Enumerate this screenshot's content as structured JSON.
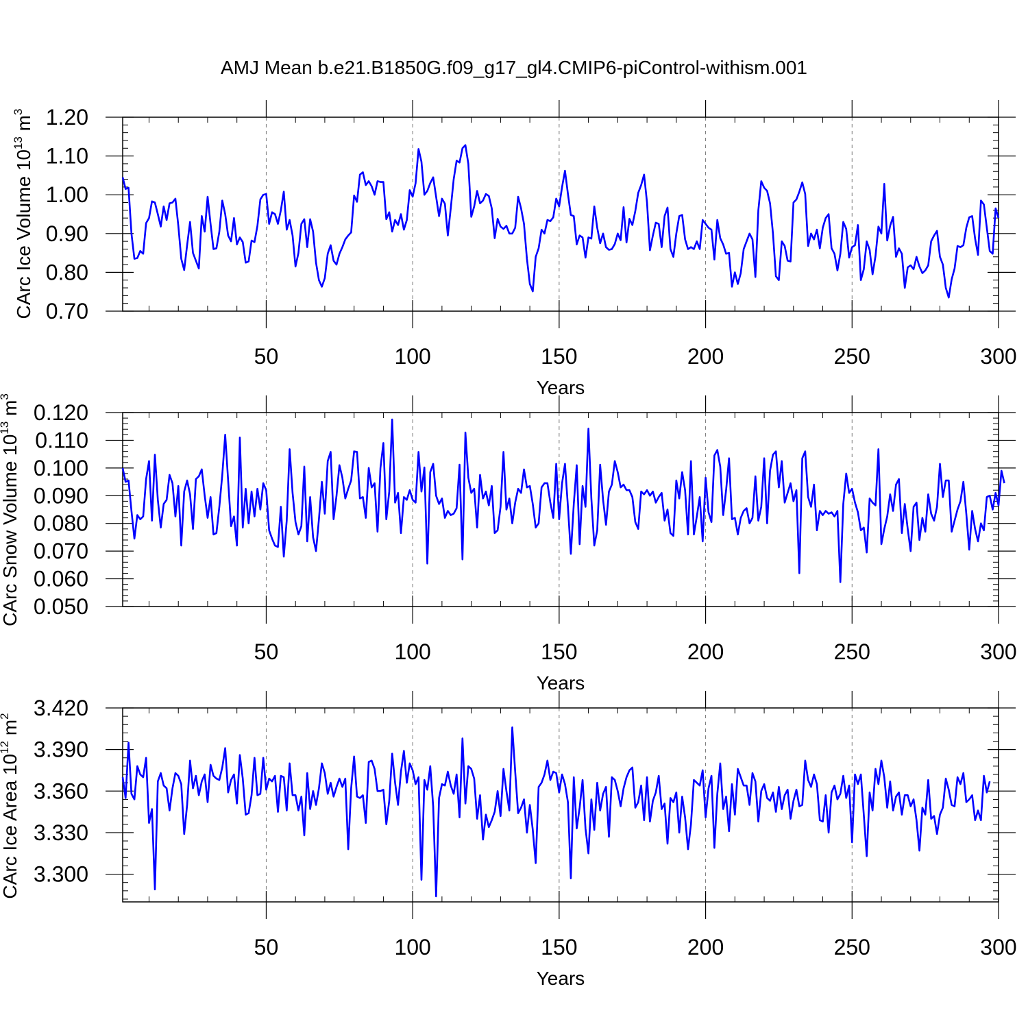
{
  "title": "AMJ Mean b.e21.B1850G.f09_g17_gl4.CMIP6-piControl-withism.001",
  "line_color": "#0000ff",
  "chart_data": [
    {
      "type": "line",
      "ylabel": "CArc Ice Volume 10",
      "ylabel_exp": "13",
      "ylabel_unit": " m",
      "ylabel_unit_exp": "3",
      "xlabel": "Years",
      "xlim": [
        1,
        300
      ],
      "ylim": [
        0.7,
        1.2
      ],
      "xticks": [
        50,
        100,
        150,
        200,
        250,
        300
      ],
      "xtick_labels": [
        "50",
        "100",
        "150",
        "200",
        "250",
        "300"
      ],
      "yticks": [
        0.7,
        0.8,
        0.9,
        1.0,
        1.1,
        1.2
      ],
      "ytick_labels": [
        "0.70",
        "0.80",
        "0.90",
        "1.00",
        "1.10",
        "1.20"
      ],
      "grid": "dashed vertical lines at x ticks",
      "series": [
        {
          "start_year": 1,
          "values": [
            1.045,
            1.015,
            1.018,
            0.9,
            0.835,
            0.837,
            0.855,
            0.848,
            0.927,
            0.94,
            0.983,
            0.98,
            0.95,
            0.918,
            0.97,
            0.935,
            0.978,
            0.98,
            0.99,
            0.92,
            0.835,
            0.806,
            0.87,
            0.93,
            0.85,
            0.83,
            0.81,
            0.945,
            0.905,
            0.995,
            0.925,
            0.86,
            0.862,
            0.905,
            0.985,
            0.95,
            0.895,
            0.88,
            0.94,
            0.872,
            0.89,
            0.878,
            0.825,
            0.828,
            0.882,
            0.878,
            0.92,
            0.988,
            1.0,
            1.002,
            0.925,
            0.955,
            0.95,
            0.925,
            0.96,
            1.008,
            0.91,
            0.935,
            0.895,
            0.815,
            0.85,
            0.925,
            0.937,
            0.865,
            0.937,
            0.905,
            0.825,
            0.78,
            0.763,
            0.785,
            0.848,
            0.87,
            0.83,
            0.82,
            0.848,
            0.865,
            0.885,
            0.895,
            0.903,
            0.998,
            0.982,
            1.052,
            1.058,
            1.025,
            1.035,
            1.022,
            1.0,
            1.035,
            1.033,
            1.033,
            0.937,
            0.955,
            0.905,
            0.935,
            0.922,
            0.95,
            0.91,
            0.935,
            1.012,
            0.995,
            1.03,
            1.118,
            1.085,
            1.0,
            1.01,
            1.03,
            1.045,
            0.995,
            0.945,
            0.99,
            0.977,
            0.895,
            0.965,
            1.04,
            1.088,
            1.083,
            1.12,
            1.128,
            1.08,
            0.943,
            0.97,
            1.01,
            0.978,
            0.985,
            1.002,
            0.997,
            0.965,
            0.888,
            0.938,
            0.918,
            0.912,
            0.92,
            0.9,
            0.9,
            0.915,
            0.995,
            0.965,
            0.925,
            0.835,
            0.77,
            0.751,
            0.84,
            0.862,
            0.91,
            0.9,
            0.935,
            0.932,
            0.942,
            0.99,
            0.97,
            1.02,
            1.062,
            1.002,
            0.948,
            0.945,
            0.872,
            0.895,
            0.89,
            0.838,
            0.89,
            0.887,
            0.97,
            0.915,
            0.875,
            0.9,
            0.865,
            0.858,
            0.86,
            0.873,
            0.9,
            0.883,
            0.968,
            0.877,
            0.938,
            0.922,
            0.958,
            1.005,
            1.025,
            1.052,
            0.98,
            0.857,
            0.895,
            0.928,
            0.925,
            0.865,
            0.945,
            0.967,
            0.86,
            0.84,
            0.9,
            0.945,
            0.948,
            0.885,
            0.86,
            0.865,
            0.86,
            0.88,
            0.86,
            0.935,
            0.925,
            0.915,
            0.91,
            0.833,
            0.935,
            0.888,
            0.872,
            0.848,
            0.85,
            0.763,
            0.8,
            0.77,
            0.798,
            0.86,
            0.88,
            0.9,
            0.885,
            0.788,
            0.96,
            1.035,
            1.018,
            1.01,
            0.978,
            0.9,
            0.79,
            0.78,
            0.88,
            0.868,
            0.83,
            0.828,
            0.98,
            0.988,
            1.008,
            1.032,
            1.002,
            0.868,
            0.9,
            0.885,
            0.91,
            0.862,
            0.915,
            0.94,
            0.95,
            0.862,
            0.848,
            0.805,
            0.848,
            0.93,
            0.912,
            0.838,
            0.865,
            0.87,
            0.922,
            0.78,
            0.808,
            0.88,
            0.858,
            0.795,
            0.842,
            0.918,
            0.9,
            1.028,
            0.882,
            0.92,
            0.943,
            0.84,
            0.862,
            0.848,
            0.76,
            0.813,
            0.818,
            0.808,
            0.84,
            0.815,
            0.798,
            0.805,
            0.818,
            0.88,
            0.895,
            0.907,
            0.84,
            0.82,
            0.76,
            0.735,
            0.782,
            0.81,
            0.868,
            0.865,
            0.87,
            0.915,
            0.942,
            0.945,
            0.887,
            0.845,
            0.985,
            0.975,
            0.915,
            0.855,
            0.848,
            0.965,
            0.94
          ]
        }
      ]
    },
    {
      "type": "line",
      "ylabel": "CArc Snow Volume 10",
      "ylabel_exp": "13",
      "ylabel_unit": " m",
      "ylabel_unit_exp": "3",
      "xlabel": "Years",
      "xlim": [
        1,
        300
      ],
      "ylim": [
        0.05,
        0.12
      ],
      "xticks": [
        50,
        100,
        150,
        200,
        250,
        300
      ],
      "xtick_labels": [
        "50",
        "100",
        "150",
        "200",
        "250",
        "300"
      ],
      "yticks": [
        0.05,
        0.06,
        0.07,
        0.08,
        0.09,
        0.1,
        0.11,
        0.12
      ],
      "ytick_labels": [
        "0.050",
        "0.060",
        "0.070",
        "0.080",
        "0.090",
        "0.100",
        "0.110",
        "0.120"
      ],
      "grid": "dashed vertical lines at x ticks",
      "series": [
        {
          "start_year": 1,
          "values": [
            0.1,
            0.095,
            0.0955,
            0.0845,
            0.0745,
            0.083,
            0.0815,
            0.0825,
            0.096,
            0.1025,
            0.081,
            0.1048,
            0.0885,
            0.0785,
            0.087,
            0.0885,
            0.0975,
            0.0945,
            0.0825,
            0.0935,
            0.072,
            0.0915,
            0.0955,
            0.0905,
            0.078,
            0.096,
            0.097,
            0.0995,
            0.09,
            0.082,
            0.0895,
            0.076,
            0.0765,
            0.086,
            0.0975,
            0.112,
            0.0955,
            0.079,
            0.0825,
            0.072,
            0.111,
            0.0785,
            0.0925,
            0.08,
            0.0915,
            0.0825,
            0.0925,
            0.085,
            0.0945,
            0.092,
            0.0775,
            0.0745,
            0.072,
            0.0715,
            0.086,
            0.068,
            0.081,
            0.1068,
            0.091,
            0.0805,
            0.076,
            0.079,
            0.1005,
            0.0735,
            0.0895,
            0.075,
            0.07,
            0.0815,
            0.095,
            0.0835,
            0.1025,
            0.1058,
            0.0815,
            0.09,
            0.101,
            0.0965,
            0.089,
            0.0925,
            0.0955,
            0.106,
            0.1058,
            0.089,
            0.0895,
            0.082,
            0.1,
            0.093,
            0.0945,
            0.077,
            0.1,
            0.109,
            0.0815,
            0.0915,
            0.1175,
            0.0875,
            0.091,
            0.0765,
            0.0895,
            0.0885,
            0.092,
            0.0885,
            0.0875,
            0.1058,
            0.0915,
            0.1002,
            0.0655,
            0.0985,
            0.1015,
            0.09,
            0.087,
            0.089,
            0.082,
            0.0845,
            0.083,
            0.0835,
            0.0855,
            0.1012,
            0.067,
            0.1128,
            0.0965,
            0.091,
            0.0925,
            0.0785,
            0.0975,
            0.089,
            0.0915,
            0.0865,
            0.0935,
            0.0765,
            0.0775,
            0.086,
            0.1058,
            0.085,
            0.089,
            0.08,
            0.0875,
            0.0925,
            0.091,
            0.0995,
            0.093,
            0.0935,
            0.087,
            0.0785,
            0.08,
            0.093,
            0.0945,
            0.0945,
            0.0875,
            0.082,
            0.1015,
            0.0815,
            0.0945,
            0.1015,
            0.086,
            0.069,
            0.087,
            0.101,
            0.0725,
            0.0935,
            0.086,
            0.1142,
            0.089,
            0.072,
            0.0775,
            0.1012,
            0.0885,
            0.0795,
            0.0915,
            0.094,
            0.1025,
            0.0985,
            0.093,
            0.094,
            0.092,
            0.092,
            0.0895,
            0.0805,
            0.078,
            0.0915,
            0.0905,
            0.092,
            0.09,
            0.0915,
            0.0875,
            0.0895,
            0.091,
            0.081,
            0.085,
            0.0765,
            0.0755,
            0.0955,
            0.089,
            0.0985,
            0.092,
            0.076,
            0.1025,
            0.076,
            0.0825,
            0.0895,
            0.0735,
            0.0965,
            0.084,
            0.0805,
            0.1045,
            0.1065,
            0.1005,
            0.083,
            0.092,
            0.1035,
            0.0815,
            0.082,
            0.076,
            0.082,
            0.0845,
            0.0855,
            0.08,
            0.082,
            0.097,
            0.081,
            0.086,
            0.1035,
            0.08,
            0.099,
            0.1048,
            0.106,
            0.093,
            0.1025,
            0.0875,
            0.091,
            0.0945,
            0.088,
            0.092,
            0.062,
            0.1035,
            0.106,
            0.0895,
            0.086,
            0.094,
            0.0775,
            0.0845,
            0.083,
            0.0845,
            0.0835,
            0.084,
            0.0825,
            0.0845,
            0.0588,
            0.087,
            0.098,
            0.091,
            0.0925,
            0.0875,
            0.084,
            0.0775,
            0.0785,
            0.0695,
            0.089,
            0.0875,
            0.0865,
            0.1068,
            0.0725,
            0.078,
            0.0825,
            0.0905,
            0.0845,
            0.094,
            0.096,
            0.0765,
            0.087,
            0.078,
            0.07,
            0.086,
            0.0875,
            0.074,
            0.082,
            0.077,
            0.0905,
            0.0835,
            0.081,
            0.086,
            0.1015,
            0.0895,
            0.0955,
            0.0955,
            0.077,
            0.081,
            0.085,
            0.088,
            0.095,
            0.0835,
            0.0705,
            0.0845,
            0.078,
            0.0735,
            0.08,
            0.0775,
            0.0895,
            0.09,
            0.085,
            0.091,
            0.0865,
            0.099,
            0.0945
          ]
        }
      ]
    },
    {
      "type": "line",
      "ylabel": "CArc Ice Area 10",
      "ylabel_exp": "12",
      "ylabel_unit": " m",
      "ylabel_unit_exp": "2",
      "xlabel": "Years",
      "xlim": [
        1,
        300
      ],
      "ylim": [
        3.28,
        3.42
      ],
      "xticks": [
        50,
        100,
        150,
        200,
        250,
        300
      ],
      "xtick_labels": [
        "50",
        "100",
        "150",
        "200",
        "250",
        "300"
      ],
      "yticks": [
        3.3,
        3.33,
        3.36,
        3.39,
        3.42
      ],
      "ytick_labels": [
        "3.300",
        "3.330",
        "3.360",
        "3.390",
        "3.420"
      ],
      "grid": "dashed vertical lines at x ticks",
      "series": [
        {
          "start_year": 1,
          "values": [
            3.37,
            3.355,
            3.395,
            3.358,
            3.354,
            3.378,
            3.372,
            3.37,
            3.384,
            3.337,
            3.347,
            3.289,
            3.367,
            3.373,
            3.364,
            3.362,
            3.346,
            3.362,
            3.373,
            3.371,
            3.365,
            3.329,
            3.35,
            3.382,
            3.362,
            3.371,
            3.357,
            3.367,
            3.372,
            3.352,
            3.379,
            3.371,
            3.369,
            3.368,
            3.377,
            3.391,
            3.359,
            3.368,
            3.372,
            3.351,
            3.386,
            3.369,
            3.343,
            3.344,
            3.357,
            3.384,
            3.357,
            3.358,
            3.384,
            3.361,
            3.369,
            3.367,
            3.371,
            3.345,
            3.371,
            3.37,
            3.346,
            3.38,
            3.357,
            3.357,
            3.346,
            3.356,
            3.328,
            3.373,
            3.347,
            3.36,
            3.35,
            3.362,
            3.38,
            3.373,
            3.358,
            3.366,
            3.356,
            3.363,
            3.369,
            3.363,
            3.369,
            3.318,
            3.362,
            3.385,
            3.356,
            3.355,
            3.357,
            3.337,
            3.381,
            3.382,
            3.376,
            3.36,
            3.36,
            3.361,
            3.336,
            3.353,
            3.387,
            3.366,
            3.35,
            3.374,
            3.389,
            3.366,
            3.38,
            3.375,
            3.365,
            3.37,
            3.296,
            3.368,
            3.361,
            3.378,
            3.349,
            3.284,
            3.355,
            3.365,
            3.364,
            3.374,
            3.364,
            3.358,
            3.372,
            3.341,
            3.398,
            3.351,
            3.378,
            3.376,
            3.369,
            3.34,
            3.357,
            3.325,
            3.343,
            3.334,
            3.339,
            3.345,
            3.36,
            3.342,
            3.376,
            3.36,
            3.346,
            3.406,
            3.374,
            3.344,
            3.348,
            3.354,
            3.33,
            3.35,
            3.332,
            3.308,
            3.363,
            3.366,
            3.372,
            3.382,
            3.368,
            3.374,
            3.373,
            3.359,
            3.372,
            3.365,
            3.352,
            3.297,
            3.37,
            3.333,
            3.348,
            3.368,
            3.333,
            3.315,
            3.354,
            3.332,
            3.366,
            3.346,
            3.358,
            3.363,
            3.327,
            3.37,
            3.368,
            3.36,
            3.349,
            3.362,
            3.37,
            3.375,
            3.377,
            3.348,
            3.352,
            3.364,
            3.339,
            3.37,
            3.338,
            3.353,
            3.359,
            3.371,
            3.347,
            3.351,
            3.322,
            3.355,
            3.352,
            3.359,
            3.33,
            3.356,
            3.341,
            3.318,
            3.336,
            3.368,
            3.366,
            3.364,
            3.375,
            3.341,
            3.362,
            3.371,
            3.319,
            3.358,
            3.38,
            3.347,
            3.356,
            3.331,
            3.365,
            3.343,
            3.376,
            3.37,
            3.364,
            3.364,
            3.35,
            3.373,
            3.367,
            3.338,
            3.36,
            3.365,
            3.355,
            3.353,
            3.359,
            3.345,
            3.363,
            3.347,
            3.357,
            3.361,
            3.34,
            3.353,
            3.361,
            3.349,
            3.35,
            3.382,
            3.368,
            3.363,
            3.372,
            3.365,
            3.339,
            3.338,
            3.357,
            3.33,
            3.359,
            3.364,
            3.354,
            3.358,
            3.371,
            3.355,
            3.364,
            3.323,
            3.372,
            3.365,
            3.372,
            3.343,
            3.313,
            3.359,
            3.346,
            3.376,
            3.365,
            3.382,
            3.37,
            3.348,
            3.367,
            3.346,
            3.356,
            3.359,
            3.343,
            3.357,
            3.357,
            3.349,
            3.354,
            3.339,
            3.317,
            3.348,
            3.343,
            3.368,
            3.34,
            3.342,
            3.329,
            3.343,
            3.348,
            3.369,
            3.361,
            3.35,
            3.349,
            3.37,
            3.365,
            3.373,
            3.352,
            3.354,
            3.357,
            3.339,
            3.346,
            3.339,
            3.371,
            3.359,
            3.367
          ]
        }
      ]
    }
  ]
}
